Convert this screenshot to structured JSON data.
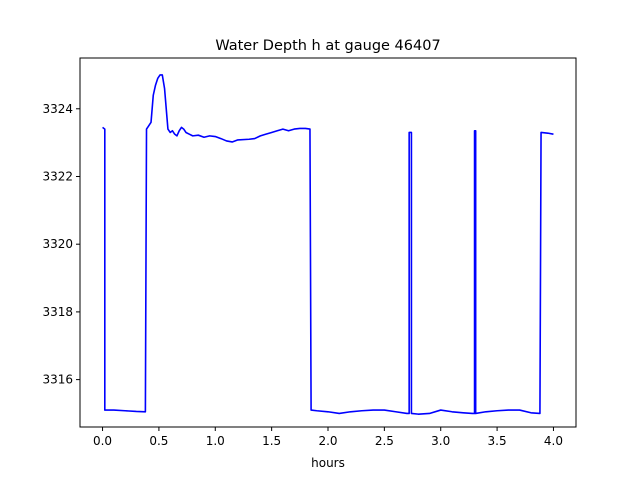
{
  "chart_data": {
    "type": "line",
    "title": "Water Depth h at gauge 46407",
    "xlabel": "hours",
    "ylabel": "",
    "xlim": [
      -0.2,
      4.2
    ],
    "ylim": [
      3314.6,
      3325.5
    ],
    "xticks": [
      0.0,
      0.5,
      1.0,
      1.5,
      2.0,
      2.5,
      3.0,
      3.5,
      4.0
    ],
    "xtick_labels": [
      "0.0",
      "0.5",
      "1.0",
      "1.5",
      "2.0",
      "2.5",
      "3.0",
      "3.5",
      "4.0"
    ],
    "yticks": [
      3316,
      3318,
      3320,
      3322,
      3324
    ],
    "ytick_labels": [
      "3316",
      "3318",
      "3320",
      "3322",
      "3324"
    ],
    "grid": false,
    "series": [
      {
        "color": "#0000ff",
        "x": [
          0.0,
          0.02,
          0.02,
          0.1,
          0.2,
          0.3,
          0.38,
          0.39,
          0.4,
          0.43,
          0.45,
          0.47,
          0.49,
          0.51,
          0.53,
          0.55,
          0.57,
          0.58,
          0.6,
          0.62,
          0.64,
          0.66,
          0.68,
          0.7,
          0.72,
          0.74,
          0.77,
          0.8,
          0.85,
          0.9,
          0.95,
          1.0,
          1.05,
          1.1,
          1.15,
          1.2,
          1.3,
          1.35,
          1.4,
          1.45,
          1.5,
          1.55,
          1.6,
          1.65,
          1.7,
          1.75,
          1.8,
          1.84,
          1.85,
          1.9,
          2.0,
          2.1,
          2.2,
          2.3,
          2.4,
          2.5,
          2.6,
          2.7,
          2.72,
          2.72,
          2.73,
          2.74,
          2.74,
          2.8,
          2.9,
          3.0,
          3.1,
          3.2,
          3.28,
          3.3,
          3.3,
          3.31,
          3.31,
          3.4,
          3.5,
          3.6,
          3.7,
          3.8,
          3.88,
          3.89,
          3.95,
          4.0
        ],
        "y": [
          3323.45,
          3323.4,
          3315.1,
          3315.1,
          3315.08,
          3315.06,
          3315.05,
          3323.4,
          3323.45,
          3323.6,
          3324.4,
          3324.7,
          3324.9,
          3325.0,
          3325.0,
          3324.6,
          3323.8,
          3323.4,
          3323.3,
          3323.35,
          3323.25,
          3323.2,
          3323.35,
          3323.45,
          3323.4,
          3323.3,
          3323.25,
          3323.2,
          3323.22,
          3323.16,
          3323.2,
          3323.18,
          3323.12,
          3323.05,
          3323.02,
          3323.08,
          3323.1,
          3323.12,
          3323.2,
          3323.25,
          3323.3,
          3323.35,
          3323.4,
          3323.35,
          3323.4,
          3323.42,
          3323.42,
          3323.4,
          3315.1,
          3315.08,
          3315.05,
          3315.0,
          3315.05,
          3315.08,
          3315.1,
          3315.1,
          3315.05,
          3315.0,
          3315.0,
          3323.3,
          3323.3,
          3323.3,
          3315.0,
          3314.98,
          3315.0,
          3315.1,
          3315.05,
          3315.02,
          3315.0,
          3315.0,
          3323.35,
          3323.35,
          3315.0,
          3315.05,
          3315.08,
          3315.1,
          3315.1,
          3315.02,
          3315.0,
          3323.3,
          3323.28,
          3323.25
        ]
      }
    ]
  }
}
